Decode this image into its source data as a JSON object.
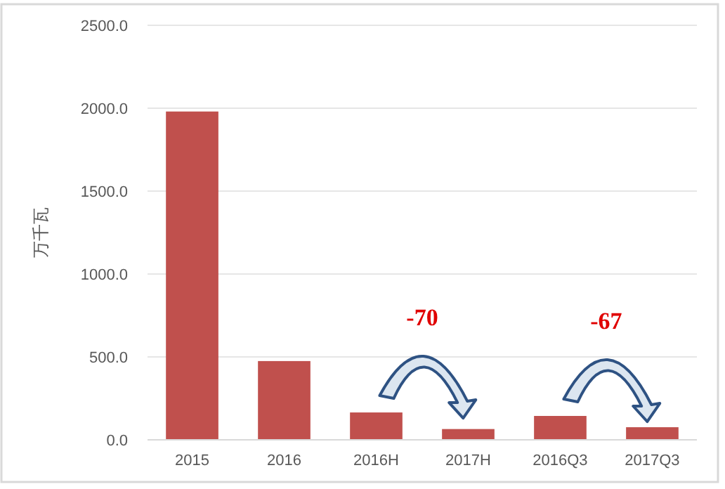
{
  "chart_data": {
    "type": "bar",
    "ylabel": "万千瓦",
    "categories": [
      "2015",
      "2016",
      "2016H",
      "2017H",
      "2016Q3",
      "2017Q3"
    ],
    "values": [
      1980,
      475,
      165,
      65,
      144,
      76
    ],
    "color": "#c0504d",
    "ylim": [
      0,
      2500
    ],
    "yticks": [
      {
        "value": 0,
        "label": "0.0"
      },
      {
        "value": 500,
        "label": "500.0"
      },
      {
        "value": 1000,
        "label": "1000.0"
      },
      {
        "value": 1500,
        "label": "1500.0"
      },
      {
        "value": 2000,
        "label": "2000.0"
      },
      {
        "value": 2500,
        "label": "2500.0"
      }
    ],
    "grid": "y",
    "annotations": [
      "-70",
      "-67"
    ]
  }
}
